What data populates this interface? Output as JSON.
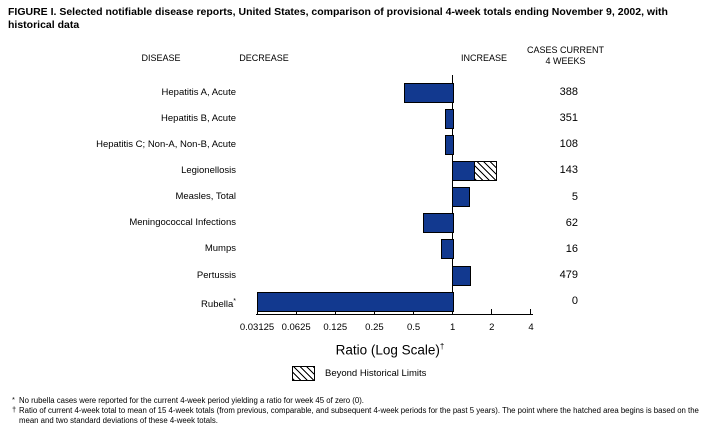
{
  "title": "FIGURE I. Selected notifiable disease reports, United States, comparison of provisional 4-week totals ending November 9, 2002, with historical data",
  "headers": {
    "disease": "DISEASE",
    "decrease": "DECREASE",
    "increase": "INCREASE",
    "cases_line1": "CASES CURRENT",
    "cases_line2": "4 WEEKS"
  },
  "chart_data": {
    "type": "bar",
    "orientation": "horizontal",
    "scale": "log2",
    "axis": {
      "label": "Ratio (Log Scale)",
      "label_superscript": "†",
      "ticks": [
        "0.03125",
        "0.0625",
        "0.125",
        "0.25",
        "0.5",
        "1",
        "2",
        "4"
      ],
      "min": 0.03125,
      "max": 4,
      "baseline": 1
    },
    "rows": [
      {
        "disease": "Hepatitis A, Acute",
        "ratio": 0.42,
        "cases": "388"
      },
      {
        "disease": "Hepatitis B, Acute",
        "ratio": 0.88,
        "cases": "351"
      },
      {
        "disease": "Hepatitis C; Non-A, Non-B, Acute",
        "ratio": 0.88,
        "cases": "108"
      },
      {
        "disease": "Legionellosis",
        "ratio": 1.48,
        "hatch_to": 2.18,
        "beyond_historical_limits": true,
        "cases": "143"
      },
      {
        "disease": "Measles, Total",
        "ratio": 1.34,
        "cases": "5"
      },
      {
        "disease": "Meningococcal Infections",
        "ratio": 0.59,
        "cases": "62"
      },
      {
        "disease": "Mumps",
        "ratio": 0.81,
        "cases": "16"
      },
      {
        "disease": "Pertussis",
        "ratio": 1.38,
        "cases": "479"
      },
      {
        "disease": "Rubella",
        "disease_superscript": "*",
        "ratio": 0.03125,
        "cases": "0"
      }
    ]
  },
  "legend": {
    "label": "Beyond Historical Limits"
  },
  "footnotes": [
    {
      "marker": "*",
      "text": "No rubella cases were reported for the current 4-week period yielding a ratio for week 45 of zero (0)."
    },
    {
      "marker": "†",
      "text": "Ratio of current 4-week total to mean of 15 4-week totals (from previous, comparable, and subsequent 4-week periods for the past 5 years). The point where the hatched area begins is based on the mean and two standard deviations of these 4-week totals."
    }
  ],
  "colors": {
    "bar_fill": "#12398f",
    "bar_border": "#000000",
    "hatch": "#000000",
    "background": "#ffffff",
    "text": "#000000"
  }
}
